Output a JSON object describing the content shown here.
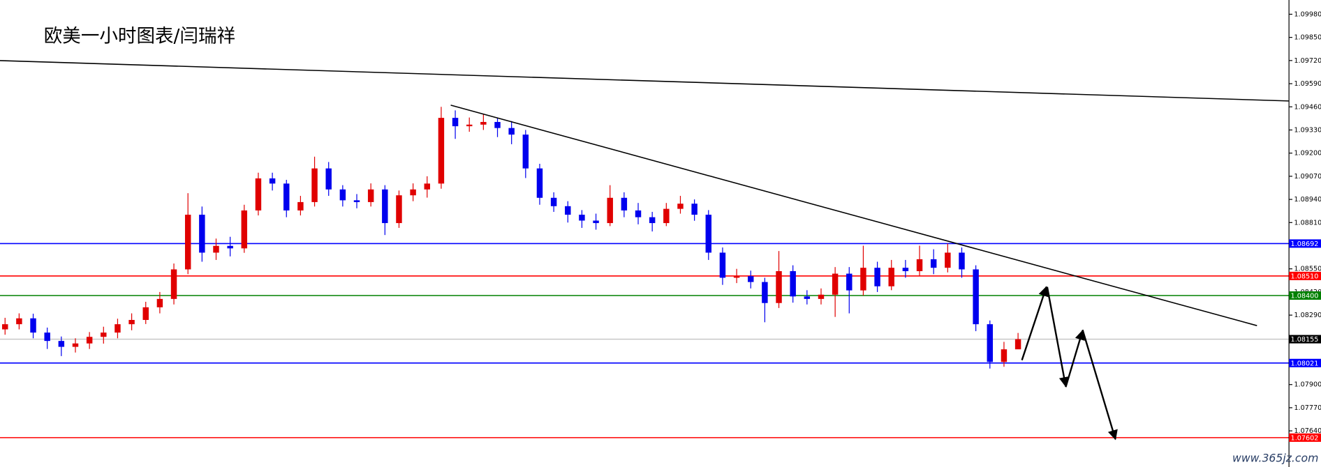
{
  "chart_data": {
    "type": "candlestick",
    "title": "欧美一小时图表/闫瑞祥",
    "watermark": "www.365jz.com",
    "up_color": "#e00000",
    "down_color": "#0000ee",
    "ylim": [
      1.07437,
      1.1006
    ],
    "yticks": [
      {
        "value": 1.0998,
        "label": "1.09980"
      },
      {
        "value": 1.0985,
        "label": "1.09850"
      },
      {
        "value": 1.0972,
        "label": "1.09720"
      },
      {
        "value": 1.0959,
        "label": "1.09590"
      },
      {
        "value": 1.0946,
        "label": "1.09460"
      },
      {
        "value": 1.0933,
        "label": "1.09330"
      },
      {
        "value": 1.092,
        "label": "1.09200"
      },
      {
        "value": 1.0907,
        "label": "1.09070"
      },
      {
        "value": 1.0894,
        "label": "1.08940"
      },
      {
        "value": 1.0881,
        "label": "1.08810"
      },
      {
        "value": 1.0855,
        "label": "1.08550"
      },
      {
        "value": 1.0842,
        "label": "1.08420"
      },
      {
        "value": 1.0829,
        "label": "1.08290"
      },
      {
        "value": 1.079,
        "label": "1.07900"
      },
      {
        "value": 1.0777,
        "label": "1.07770"
      },
      {
        "value": 1.0764,
        "label": "1.07640"
      }
    ],
    "levels": [
      {
        "value": 1.08692,
        "label": "1.08692",
        "color": "#0000ff",
        "label_bg": "#0000ff"
      },
      {
        "value": 1.0851,
        "label": "1.08510",
        "color": "#ff0000",
        "label_bg": "#ff0000"
      },
      {
        "value": 1.084,
        "label": "1.08400",
        "color": "#008000",
        "label_bg": "#008000"
      },
      {
        "value": 1.08155,
        "label": "1.08155",
        "color": "#c8c8c8",
        "label_bg": "#000000"
      },
      {
        "value": 1.08021,
        "label": "1.08021",
        "color": "#0000ff",
        "label_bg": "#0000ff"
      },
      {
        "value": 1.07602,
        "label": "1.07602",
        "color": "#ff0000",
        "label_bg": "#ff0000"
      }
    ],
    "open": [
      1.0821,
      1.08239,
      1.08272,
      1.08192,
      1.08145,
      1.08112,
      1.08131,
      1.08168,
      1.08192,
      1.08239,
      1.08263,
      1.08334,
      1.08381,
      1.08547,
      1.08854,
      1.08641,
      1.08679,
      1.08665,
      1.08878,
      1.09058,
      1.09029,
      1.08878,
      1.08925,
      1.09114,
      1.08996,
      1.08935,
      1.08925,
      1.08996,
      1.08807,
      1.08963,
      1.08996,
      1.09029,
      1.09398,
      1.09351,
      1.0936,
      1.09375,
      1.09341,
      1.09304,
      1.09114,
      1.08949,
      1.08902,
      1.08854,
      1.08821,
      1.08807,
      1.08949,
      1.08878,
      1.0884,
      1.08807,
      1.08887,
      1.08916,
      1.08854,
      1.08641,
      1.085,
      1.08509,
      1.08476,
      1.08358,
      1.08537,
      1.08395,
      1.08381,
      1.08405,
      1.08523,
      1.08429,
      1.08556,
      1.08452,
      1.08556,
      1.08537,
      1.08604,
      1.08556,
      1.08641,
      1.08547,
      1.08239,
      1.08027,
      1.08098
    ],
    "high": [
      1.08275,
      1.083,
      1.08298,
      1.0822,
      1.0817,
      1.0816,
      1.08195,
      1.08225,
      1.0827,
      1.083,
      1.08365,
      1.0842,
      1.0858,
      1.08975,
      1.089,
      1.0872,
      1.0873,
      1.0891,
      1.0909,
      1.0909,
      1.0905,
      1.0896,
      1.0918,
      1.0915,
      1.0902,
      1.0897,
      1.0903,
      1.0902,
      1.0899,
      1.0903,
      1.0907,
      1.0946,
      1.0944,
      1.094,
      1.0942,
      1.094,
      1.0938,
      1.0933,
      1.0914,
      1.0898,
      1.0893,
      1.0888,
      1.0886,
      1.0902,
      1.0898,
      1.0892,
      1.0887,
      1.0892,
      1.0896,
      1.0894,
      1.0888,
      1.0867,
      1.0855,
      1.0854,
      1.085,
      1.0865,
      1.0857,
      1.0843,
      1.0844,
      1.0856,
      1.0856,
      1.0868,
      1.0859,
      1.086,
      1.086,
      1.0868,
      1.0866,
      1.08692,
      1.0867,
      1.0857,
      1.0826,
      1.0814,
      1.0819
    ],
    "low": [
      1.0818,
      1.0821,
      1.0816,
      1.081,
      1.0806,
      1.0808,
      1.081,
      1.0813,
      1.0816,
      1.08205,
      1.0824,
      1.083,
      1.0835,
      1.0852,
      1.0859,
      1.086,
      1.0862,
      1.0864,
      1.0885,
      1.0899,
      1.0884,
      1.0885,
      1.089,
      1.0896,
      1.089,
      1.0889,
      1.089,
      1.0874,
      1.0878,
      1.0893,
      1.0895,
      1.09,
      1.0928,
      1.0932,
      1.0933,
      1.0929,
      1.0925,
      1.0906,
      1.0891,
      1.0887,
      1.0881,
      1.0878,
      1.0877,
      1.0879,
      1.0884,
      1.088,
      1.0876,
      1.0879,
      1.0886,
      1.0882,
      1.086,
      1.0846,
      1.0847,
      1.0844,
      1.0825,
      1.0833,
      1.0836,
      1.0835,
      1.0835,
      1.0828,
      1.083,
      1.084,
      1.0842,
      1.0843,
      1.085,
      1.0851,
      1.0852,
      1.0853,
      1.085,
      1.082,
      1.0799,
      1.08,
      1.0812
    ],
    "close": [
      1.08239,
      1.08272,
      1.08192,
      1.08145,
      1.08112,
      1.08131,
      1.08168,
      1.08192,
      1.08239,
      1.08263,
      1.08334,
      1.08381,
      1.08547,
      1.08854,
      1.08641,
      1.08679,
      1.08665,
      1.08878,
      1.09058,
      1.09029,
      1.08878,
      1.08925,
      1.09114,
      1.08996,
      1.08935,
      1.08925,
      1.08996,
      1.08807,
      1.08963,
      1.08996,
      1.09029,
      1.09398,
      1.09351,
      1.0936,
      1.09375,
      1.09341,
      1.09304,
      1.09114,
      1.08949,
      1.08902,
      1.08854,
      1.08821,
      1.08807,
      1.08949,
      1.08878,
      1.0884,
      1.08807,
      1.08887,
      1.08916,
      1.08854,
      1.08641,
      1.085,
      1.08509,
      1.08476,
      1.08358,
      1.08537,
      1.08395,
      1.08381,
      1.08405,
      1.08523,
      1.08429,
      1.08556,
      1.08452,
      1.08556,
      1.08537,
      1.08604,
      1.08556,
      1.08641,
      1.08547,
      1.08239,
      1.08027,
      1.08098,
      1.08155
    ]
  }
}
